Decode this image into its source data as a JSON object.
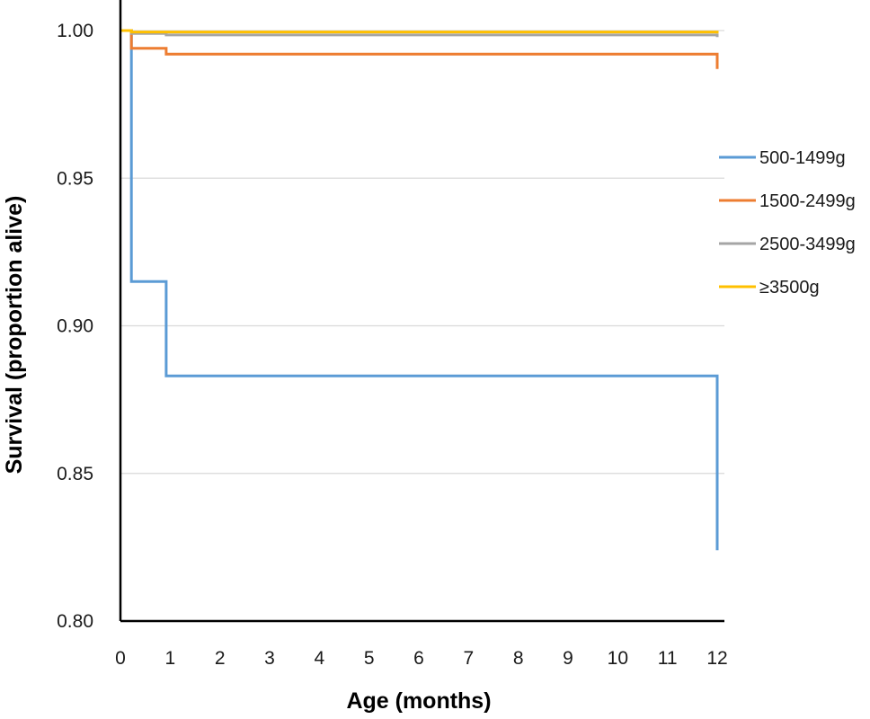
{
  "chart_data": {
    "type": "line",
    "step": true,
    "xlabel": "Age (months)",
    "ylabel": "Survival (proportion alive)",
    "xlim": [
      0,
      12
    ],
    "ylim": [
      0.8,
      1.0
    ],
    "x_ticks": [
      "0",
      "1",
      "2",
      "3",
      "4",
      "5",
      "6",
      "7",
      "8",
      "9",
      "10",
      "11",
      "12"
    ],
    "y_ticks": [
      "0.80",
      "0.85",
      "0.90",
      "0.95",
      "1.00"
    ],
    "grid": "horizontal",
    "legend_position": "right",
    "series": [
      {
        "name": "500-1499g",
        "color": "#5b9bd5",
        "points": [
          [
            0,
            1.0
          ],
          [
            0.22,
            1.0
          ],
          [
            0.22,
            0.915
          ],
          [
            0.92,
            0.915
          ],
          [
            0.92,
            0.883
          ],
          [
            12,
            0.883
          ],
          [
            12,
            0.824
          ]
        ]
      },
      {
        "name": "1500-2499g",
        "color": "#ed7d31",
        "points": [
          [
            0,
            1.0
          ],
          [
            0.22,
            1.0
          ],
          [
            0.22,
            0.994
          ],
          [
            0.92,
            0.994
          ],
          [
            0.92,
            0.992
          ],
          [
            12,
            0.992
          ],
          [
            12,
            0.987
          ]
        ]
      },
      {
        "name": "2500-3499g",
        "color": "#a5a5a5",
        "points": [
          [
            0,
            1.0
          ],
          [
            0.22,
            1.0
          ],
          [
            0.22,
            0.999
          ],
          [
            0.92,
            0.999
          ],
          [
            0.92,
            0.9985
          ],
          [
            12,
            0.9985
          ],
          [
            12,
            0.9978
          ]
        ]
      },
      {
        "name": "≥3500g",
        "color": "#ffc000",
        "points": [
          [
            0,
            1.0
          ],
          [
            0.22,
            1.0
          ],
          [
            0.22,
            0.9995
          ],
          [
            12,
            0.9995
          ],
          [
            12,
            0.999
          ]
        ]
      }
    ]
  }
}
